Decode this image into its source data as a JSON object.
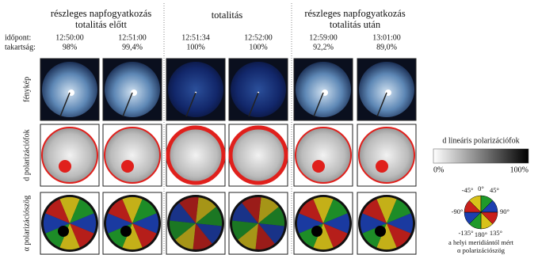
{
  "groups": [
    {
      "title_lines": [
        "részleges napfogyatkozás",
        "totalitás előtt"
      ],
      "columns": [
        {
          "time": "12:50:00",
          "coverage": "98%"
        },
        {
          "time": "12:51:00",
          "coverage": "99,4%"
        }
      ]
    },
    {
      "title_lines": [
        "totalitás"
      ],
      "columns": [
        {
          "time": "12:51:34",
          "coverage": "100%"
        },
        {
          "time": "12:52:00",
          "coverage": "100%"
        }
      ]
    },
    {
      "title_lines": [
        "részleges napfogyatkozás",
        "totalitás után"
      ],
      "columns": [
        {
          "time": "12:59:00",
          "coverage": "92,2%"
        },
        {
          "time": "13:01:00",
          "coverage": "89,0%"
        }
      ]
    }
  ],
  "header_labels": {
    "time": "időpont:",
    "coverage": "takartság:"
  },
  "rows": [
    "fénykép",
    "d polarizációfok",
    "α polarizációszög"
  ],
  "dop_legend": {
    "title": "d lineáris polarizációfok",
    "min": "0%",
    "max": "100%"
  },
  "angle_legend": {
    "labels": [
      "-45°",
      "0°",
      "45°",
      "-90°",
      "90°",
      "-135°",
      "180°",
      "135°"
    ],
    "caption_lines": [
      "a helyi meridiántól mért",
      "α polarizációszög"
    ]
  }
}
